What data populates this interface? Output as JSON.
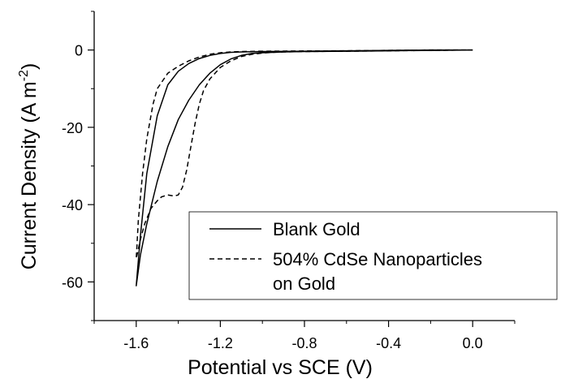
{
  "chart_data": {
    "type": "line",
    "xlabel": "Potential vs SCE (V)",
    "ylabel_main": "Current Density (A m",
    "ylabel_sup": "-2",
    "ylabel_close": ")",
    "xlim": [
      -1.8,
      0.2
    ],
    "ylim": [
      -70,
      10
    ],
    "x_ticks": [
      -1.6,
      -1.2,
      -0.8,
      -0.4,
      0.0
    ],
    "x_tick_labels": [
      "-1.6",
      "-1.2",
      "-0.8",
      "-0.4",
      "0.0"
    ],
    "y_ticks": [
      0,
      -20,
      -40,
      -60
    ],
    "y_tick_labels": [
      "0",
      "-20",
      "-40",
      "-60"
    ],
    "legend_position": "bottom-right",
    "legend": {
      "line1": "Blank Gold",
      "line2a": "504% CdSe Nanoparticles",
      "line2b": "on Gold"
    },
    "series": [
      {
        "name": "Blank Gold",
        "style": "solid",
        "color": "#000000",
        "x": [
          0.0,
          -0.2,
          -0.4,
          -0.6,
          -0.8,
          -0.9,
          -1.0,
          -1.05,
          -1.1,
          -1.15,
          -1.2,
          -1.25,
          -1.3,
          -1.35,
          -1.4,
          -1.45,
          -1.5,
          -1.55,
          -1.58,
          -1.6,
          -1.58,
          -1.55,
          -1.5,
          -1.45,
          -1.4,
          -1.35,
          -1.3,
          -1.25,
          -1.2,
          -1.15,
          -1.1,
          -1.0,
          -0.8,
          -0.6,
          -0.4,
          -0.2,
          0.0
        ],
        "y": [
          0.0,
          -0.1,
          -0.2,
          -0.3,
          -0.4,
          -0.5,
          -0.7,
          -0.9,
          -1.4,
          -2.3,
          -3.8,
          -6.0,
          -9.0,
          -13.0,
          -18.0,
          -25.0,
          -34.0,
          -45.0,
          -53.0,
          -61.0,
          -48.0,
          -32.0,
          -17.0,
          -9.0,
          -5.5,
          -3.5,
          -2.2,
          -1.4,
          -0.9,
          -0.6,
          -0.5,
          -0.4,
          -0.3,
          -0.2,
          -0.1,
          0.0,
          0.0
        ]
      },
      {
        "name": "504% CdSe Nanoparticles on Gold",
        "style": "dashed",
        "color": "#000000",
        "x": [
          0.0,
          -0.2,
          -0.4,
          -0.6,
          -0.8,
          -0.9,
          -0.95,
          -1.0,
          -1.05,
          -1.1,
          -1.15,
          -1.2,
          -1.25,
          -1.28,
          -1.3,
          -1.32,
          -1.34,
          -1.36,
          -1.38,
          -1.4,
          -1.42,
          -1.45,
          -1.48,
          -1.5,
          -1.53,
          -1.56,
          -1.58,
          -1.6,
          -1.59,
          -1.57,
          -1.55,
          -1.52,
          -1.5,
          -1.45,
          -1.4,
          -1.35,
          -1.3,
          -1.25,
          -1.2,
          -1.15,
          -1.1,
          -1.0,
          -0.8,
          -0.6,
          -0.4,
          -0.2,
          0.0
        ],
        "y": [
          0.0,
          -0.1,
          -0.2,
          -0.3,
          -0.4,
          -0.5,
          -0.6,
          -0.8,
          -1.1,
          -1.7,
          -2.8,
          -4.5,
          -7.5,
          -10.5,
          -14.0,
          -19.0,
          -25.0,
          -31.0,
          -35.5,
          -37.5,
          -37.8,
          -37.5,
          -38.0,
          -39.0,
          -41.0,
          -45.0,
          -49.0,
          -54.0,
          -44.0,
          -32.0,
          -23.0,
          -14.0,
          -10.0,
          -6.0,
          -4.2,
          -2.8,
          -1.8,
          -1.1,
          -0.7,
          -0.5,
          -0.4,
          -0.3,
          -0.25,
          -0.2,
          -0.1,
          0.0,
          0.0
        ]
      }
    ]
  }
}
